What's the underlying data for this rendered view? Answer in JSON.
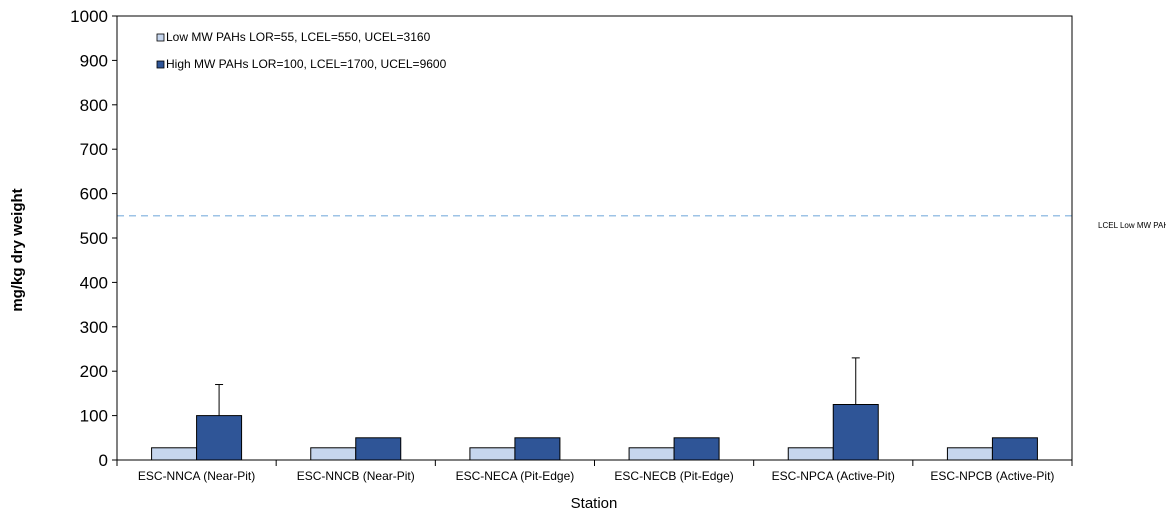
{
  "chart_data": {
    "type": "bar",
    "title": "",
    "xlabel": "Station",
    "ylabel": "mg/kg dry weight",
    "ylim": [
      0,
      1000
    ],
    "yticks": [
      0,
      100,
      200,
      300,
      400,
      500,
      600,
      700,
      800,
      900,
      1000
    ],
    "categories": [
      "ESC-NNCA (Near-Pit)",
      "ESC-NNCB (Near-Pit)",
      "ESC-NECA (Pit-Edge)",
      "ESC-NECB (Pit-Edge)",
      "ESC-NPCA (Active-Pit)",
      "ESC-NPCB (Active-Pit)"
    ],
    "series": [
      {
        "name": "Low MW PAHs LOR=55, LCEL=550, UCEL=3160",
        "color": "#c6d6ee",
        "values": [
          27.5,
          27.5,
          27.5,
          27.5,
          27.5,
          27.5
        ],
        "error_upper": [
          0,
          0,
          0,
          0,
          0,
          0
        ]
      },
      {
        "name": "High MW PAHs LOR=100, LCEL=1700, UCEL=9600",
        "color": "#2f5597",
        "values": [
          100,
          50,
          50,
          50,
          125,
          50
        ],
        "error_upper": [
          70,
          0,
          0,
          0,
          105,
          0
        ]
      }
    ],
    "reference_lines": [
      {
        "label": "LCEL Low MW PAHs",
        "value": 550,
        "color": "#9dc3e6"
      }
    ],
    "grid": false,
    "legend_position": "top-left"
  }
}
